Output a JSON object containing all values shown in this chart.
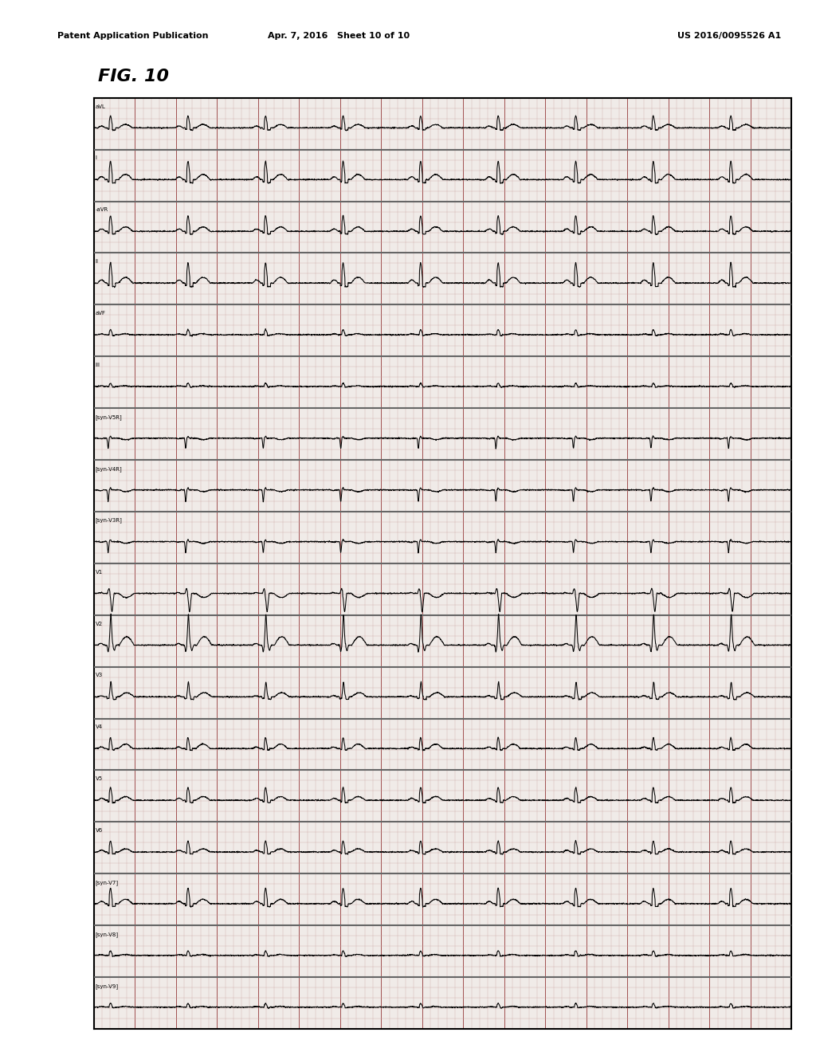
{
  "title": "FIG. 10",
  "header_left": "Patent Application Publication",
  "header_center": "Apr. 7, 2016   Sheet 10 of 10",
  "header_right": "US 2016/0095526 A1",
  "lead_labels": [
    "aVL",
    "I",
    "-aVR",
    "II",
    "aVF",
    "III",
    "[syn-V5R]",
    "[syn-V4R]",
    "[syn-V3R]",
    "V1",
    "V2",
    "V3",
    "V4",
    "V5",
    "V6",
    "[syn-V7]",
    "[syn-V8]",
    "[syn-V9]"
  ],
  "n_leads": 18,
  "bg_color": "#ffffff",
  "grid_minor_color": "#c8a0a0",
  "grid_major_color": "#a05050",
  "ecg_color": "#000000",
  "separator_color": "#666666",
  "chart_bg": "#f0ebe8"
}
